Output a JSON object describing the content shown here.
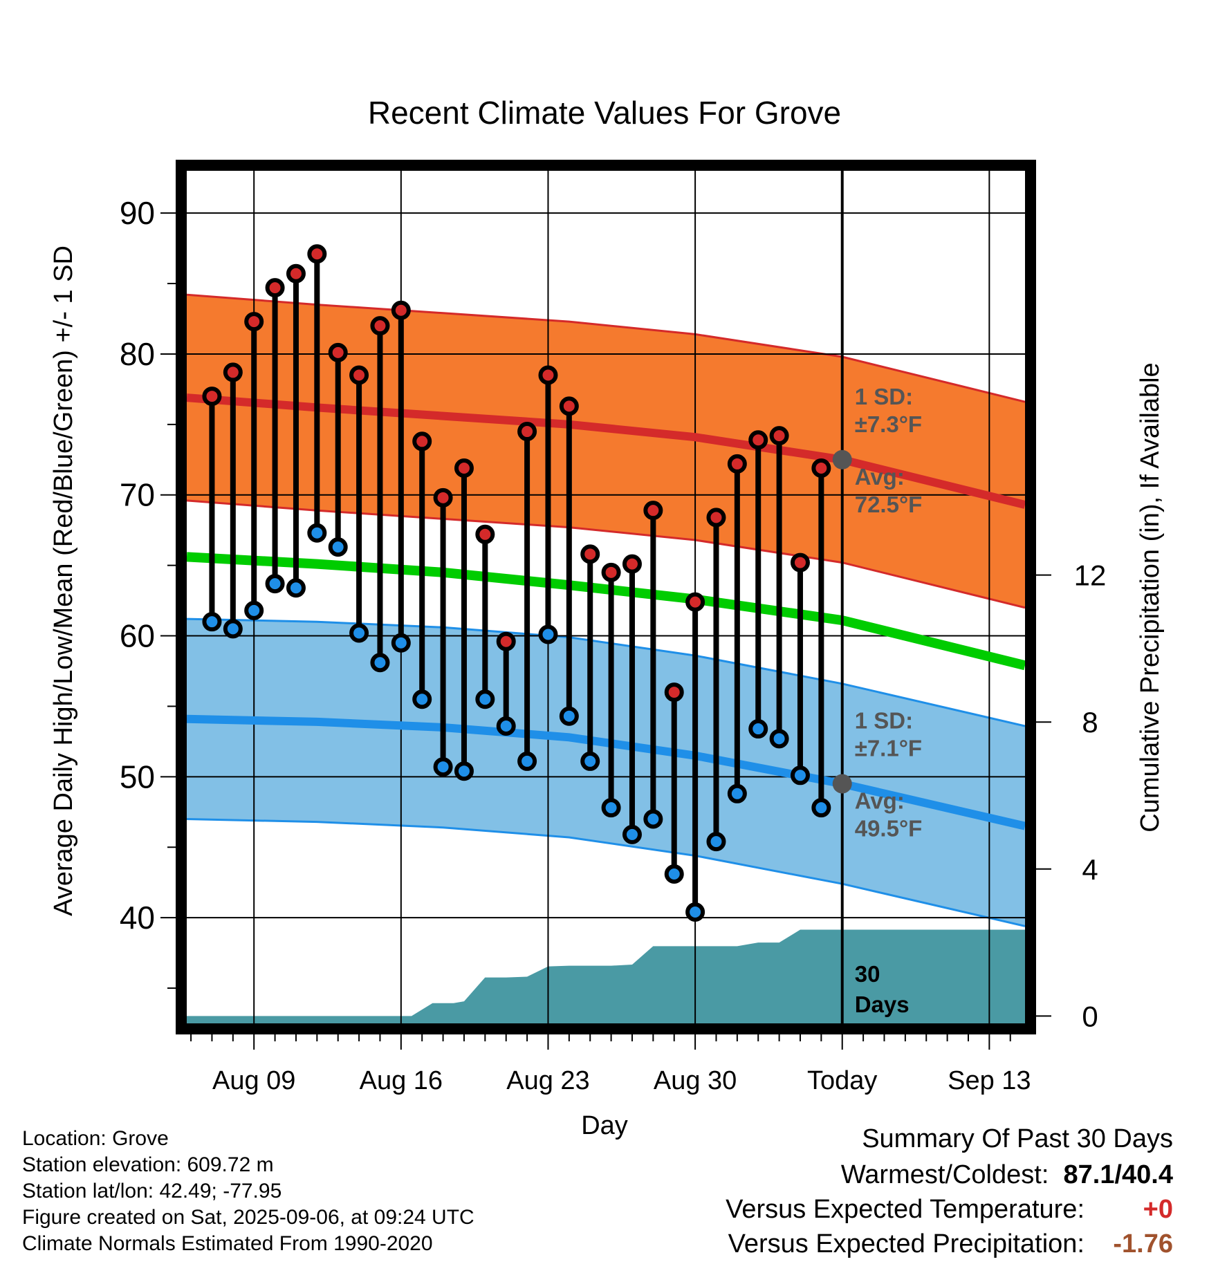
{
  "chart_data": {
    "type": "line",
    "title": "Recent Climate Values For Grove",
    "xlabel": "Day",
    "ylabel": "Average Daily High/Low/Mean (Red/Blue/Green) +/- 1 SD",
    "y2label": "Cumulative Precipitation (in), If Available",
    "ylim": [
      32.5,
      93
    ],
    "y2lim": [
      -0.2,
      23
    ],
    "grid": true,
    "x_tick_labels": [
      "Aug 09",
      "Aug 16",
      "Aug 23",
      "Aug 30",
      "Today",
      "Sep 13"
    ],
    "x_tick_days": [
      9,
      16,
      23,
      30,
      37,
      44
    ],
    "xlim": [
      5.8,
      45.7
    ],
    "y_ticks": [
      40,
      50,
      60,
      70,
      80,
      90
    ],
    "y2_ticks": [
      0,
      4,
      8,
      12
    ],
    "today_day": 37,
    "days": [
      7,
      8,
      9,
      10,
      11,
      12,
      13,
      14,
      15,
      16,
      17,
      18,
      19,
      20,
      21,
      22,
      23,
      24,
      25,
      26,
      27,
      28,
      29,
      30,
      31,
      32,
      33,
      34,
      35,
      36
    ],
    "series": [
      {
        "name": "High",
        "color": "#d42a2a",
        "values": [
          77.0,
          78.7,
          82.3,
          84.7,
          85.7,
          87.1,
          80.1,
          78.5,
          82.0,
          83.1,
          73.8,
          69.8,
          71.9,
          67.2,
          59.6,
          74.5,
          78.5,
          76.3,
          65.8,
          64.5,
          65.1,
          68.9,
          56.0,
          62.4,
          68.4,
          72.2,
          73.9,
          74.2,
          65.2,
          71.9
        ]
      },
      {
        "name": "Low",
        "color": "#1f8fe8",
        "values": [
          61.0,
          60.5,
          61.8,
          63.7,
          63.4,
          67.3,
          66.3,
          60.2,
          58.1,
          59.5,
          55.5,
          50.7,
          50.4,
          55.5,
          53.6,
          51.1,
          60.1,
          54.3,
          51.1,
          47.8,
          45.9,
          47.0,
          43.1,
          40.4,
          45.4,
          48.8,
          53.4,
          52.7,
          50.1,
          47.8
        ]
      }
    ],
    "normal_high": {
      "days": [
        5.8,
        12,
        18,
        24,
        30,
        37,
        45.7
      ],
      "mean": [
        76.9,
        76.2,
        75.6,
        75.0,
        74.1,
        72.5,
        69.3
      ],
      "sd": 7.3
    },
    "normal_low": {
      "days": [
        5.8,
        12,
        18,
        24,
        30,
        37,
        45.7
      ],
      "mean": [
        54.1,
        53.9,
        53.5,
        52.8,
        51.5,
        49.5,
        46.5
      ],
      "sd": 7.1
    },
    "normal_mean": {
      "days": [
        5.8,
        12,
        18,
        24,
        30,
        37,
        45.7
      ],
      "values": [
        65.6,
        65.1,
        64.5,
        63.6,
        62.6,
        61.1,
        57.9
      ]
    },
    "precip_cumulative": {
      "days": [
        5.8,
        16.5,
        17.5,
        18.5,
        19,
        20,
        21,
        22,
        23,
        24,
        25,
        26,
        27,
        28,
        29,
        30,
        31,
        32,
        33,
        34,
        35,
        36,
        37,
        45.7
      ],
      "values": [
        0,
        0,
        0.35,
        0.35,
        0.4,
        1.05,
        1.05,
        1.07,
        1.35,
        1.37,
        1.37,
        1.37,
        1.4,
        1.9,
        1.9,
        1.9,
        1.9,
        1.9,
        2.0,
        2.0,
        2.35,
        2.35,
        2.35,
        2.35
      ]
    },
    "annotations": {
      "high_sd_label": "1 SD:",
      "high_sd_value": "±7.3°F",
      "high_avg_label": "Avg:",
      "high_avg_value": "72.5°F",
      "low_sd_label": "1 SD:",
      "low_sd_value": "±7.1°F",
      "low_avg_label": "Avg:",
      "low_avg_value": "49.5°F",
      "period_line1": "30",
      "period_line2": "Days"
    },
    "colors": {
      "high_band": "#f57a2e",
      "high_band_edge": "#d42a2a",
      "high_mean": "#d42a2a",
      "low_band": "#82c0e6",
      "low_band_edge": "#1f8fe8",
      "low_mean": "#1f8fe8",
      "normal_mean": "#00cc00",
      "precip": "#4a9aa4",
      "annotation": "#555555",
      "avg_marker": "#555555"
    }
  },
  "info": {
    "location": "Location: Grove",
    "elevation": "Station elevation: 609.72 m",
    "latlon": "Station lat/lon: 42.49; -77.95",
    "created": "Figure created on Sat, 2025-09-06, at 09:24 UTC",
    "normals": "Climate Normals Estimated From 1990-2020"
  },
  "summary": {
    "title": "Summary Of Past 30 Days",
    "warmest_coldest_label": "Warmest/Coldest:",
    "warmest_coldest_value": "87.1/40.4",
    "temp_label": "Versus Expected Temperature:",
    "temp_value": "+0",
    "temp_color": "#d42a2a",
    "precip_label": "Versus Expected Precipitation:",
    "precip_value": "-1.76",
    "precip_color": "#a0522d"
  }
}
